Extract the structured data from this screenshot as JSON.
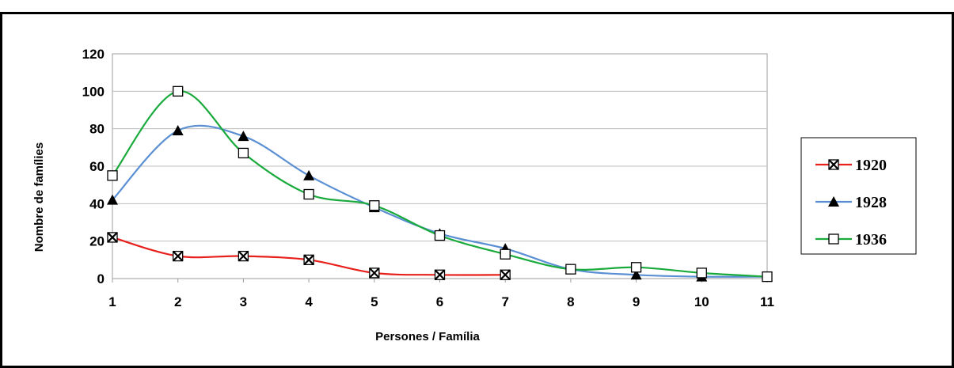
{
  "chart_data": {
    "type": "line",
    "title": "",
    "xlabel": "Persones / Família",
    "ylabel": "Nombre de famílies",
    "x": [
      1,
      2,
      3,
      4,
      5,
      6,
      7,
      8,
      9,
      10,
      11
    ],
    "xlim": [
      1,
      11
    ],
    "ylim": [
      0,
      120
    ],
    "yticks": [
      0,
      20,
      40,
      60,
      80,
      100,
      120
    ],
    "grid": true,
    "smooth": true,
    "legend_position": "right",
    "series": [
      {
        "name": "1920",
        "color": "#e8201c",
        "marker": "x-square",
        "values": [
          22,
          12,
          12,
          10,
          3,
          2,
          2,
          null,
          null,
          null,
          null
        ]
      },
      {
        "name": "1928",
        "color": "#5b8fd4",
        "marker": "triangle",
        "values": [
          42,
          79,
          76,
          55,
          38,
          24,
          16,
          5,
          2,
          1,
          1
        ]
      },
      {
        "name": "1936",
        "color": "#1aaa3c",
        "marker": "square",
        "values": [
          55,
          100,
          67,
          45,
          39,
          23,
          13,
          5,
          6,
          3,
          1
        ]
      }
    ]
  }
}
